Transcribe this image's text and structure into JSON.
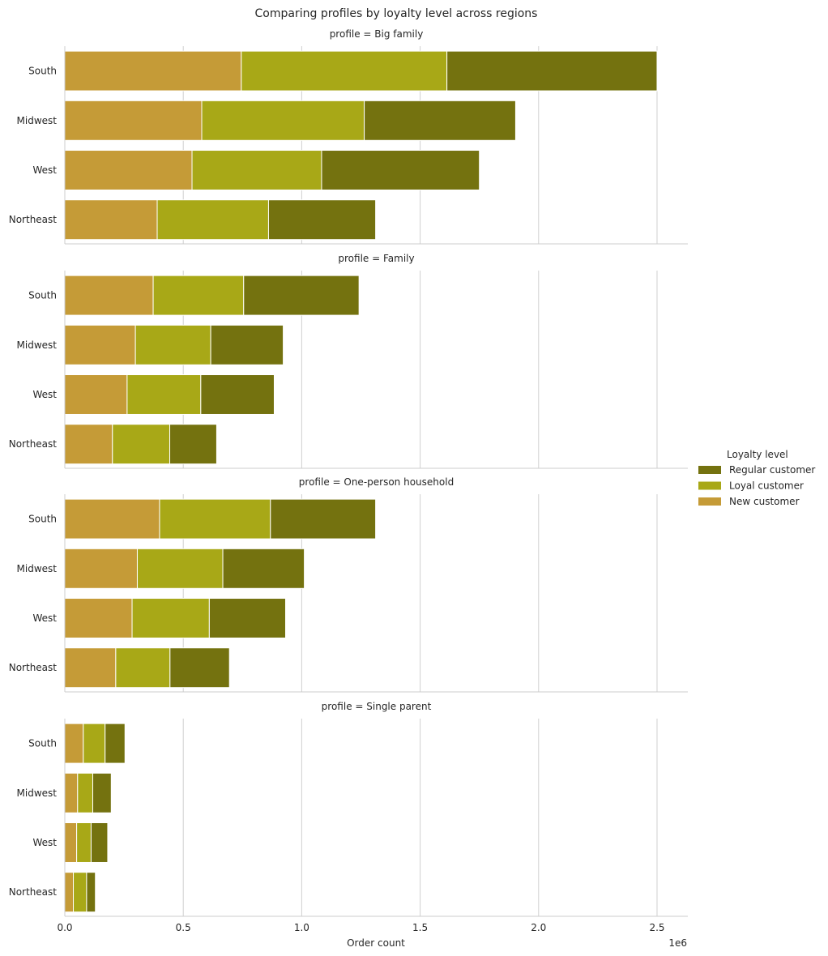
{
  "chart_data": {
    "type": "bar",
    "orientation": "horizontal",
    "stacked": true,
    "title": "Comparing profiles by loyalty level across regions",
    "xlabel": "Order count",
    "x_offset_label": "1e6",
    "xlim": [
      0,
      2630000
    ],
    "x_ticks": [
      0,
      500000,
      1000000,
      1500000,
      2000000,
      2500000
    ],
    "x_tick_labels": [
      "0.0",
      "0.5",
      "1.0",
      "1.5",
      "2.0",
      "2.5"
    ],
    "grid": "x",
    "legend": {
      "title": "Loyalty level",
      "placement": "center-right",
      "entries": [
        {
          "label": "Regular customer",
          "color": "#74720f"
        },
        {
          "label": "Loyal customer",
          "color": "#a8a817"
        },
        {
          "label": "New customer",
          "color": "#c59b37"
        }
      ]
    },
    "stack_order": [
      "New customer",
      "Loyal customer",
      "Regular customer"
    ],
    "colors": {
      "New customer": "#c59b37",
      "Loyal customer": "#a8a817",
      "Regular customer": "#74720f"
    },
    "categories": [
      "South",
      "Midwest",
      "West",
      "Northeast"
    ],
    "panels": [
      {
        "title": "profile = Big family",
        "series": [
          {
            "name": "New customer",
            "values": [
              745000,
              578000,
              537000,
              390000
            ]
          },
          {
            "name": "Loyal customer",
            "values": [
              868000,
              686000,
              547000,
              470000
            ]
          },
          {
            "name": "Regular customer",
            "values": [
              887000,
              639000,
              666000,
              452000
            ]
          }
        ]
      },
      {
        "title": "profile = Family",
        "series": [
          {
            "name": "New customer",
            "values": [
              373000,
              298000,
              263000,
              201000
            ]
          },
          {
            "name": "Loyal customer",
            "values": [
              382000,
              318000,
              311000,
              242000
            ]
          },
          {
            "name": "Regular customer",
            "values": [
              487000,
              306000,
              310000,
              198000
            ]
          }
        ]
      },
      {
        "title": "profile = One-person household",
        "series": [
          {
            "name": "New customer",
            "values": [
              400000,
              306000,
              284000,
              215000
            ]
          },
          {
            "name": "Loyal customer",
            "values": [
              468000,
              361000,
              326000,
              229000
            ]
          },
          {
            "name": "Regular customer",
            "values": [
              444000,
              344000,
              322000,
              251000
            ]
          }
        ]
      },
      {
        "title": "profile = Single parent",
        "series": [
          {
            "name": "New customer",
            "values": [
              78000,
              54000,
              50000,
              36000
            ]
          },
          {
            "name": "Loyal customer",
            "values": [
              92000,
              64000,
              61000,
              56000
            ]
          },
          {
            "name": "Regular customer",
            "values": [
              84000,
              78000,
              70000,
              37000
            ]
          }
        ]
      }
    ]
  }
}
